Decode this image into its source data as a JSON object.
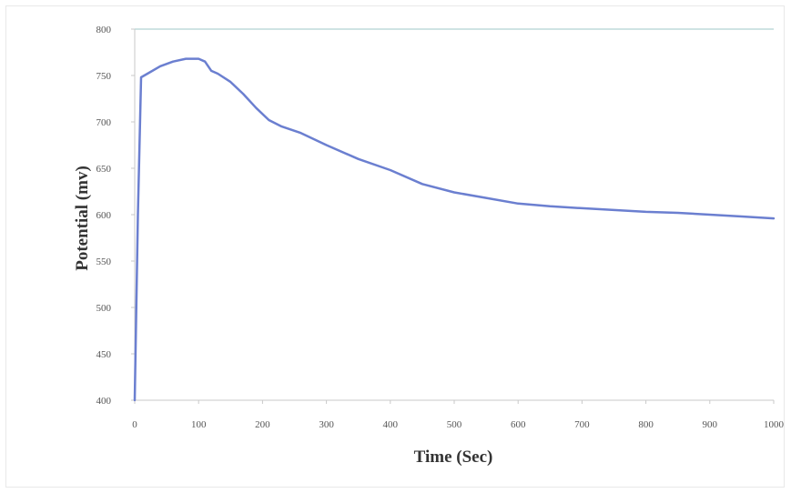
{
  "chart_data": {
    "type": "line",
    "title": "",
    "xlabel": "Time (Sec)",
    "ylabel": "Potential (mv)",
    "xlim": [
      0,
      1000
    ],
    "ylim": [
      400,
      800
    ],
    "x_ticks": [
      0,
      100,
      200,
      300,
      400,
      500,
      600,
      700,
      800,
      900,
      1000
    ],
    "y_ticks": [
      400,
      450,
      500,
      550,
      600,
      650,
      700,
      750,
      800
    ],
    "x_tick_labels": [
      "0",
      "100",
      "200",
      "300",
      "400",
      "500",
      "600",
      "700",
      "800",
      "900",
      "1000"
    ],
    "y_tick_labels": [
      "400",
      "450",
      "500",
      "550",
      "600",
      "650",
      "700",
      "750",
      "800"
    ],
    "grid": false,
    "colors": {
      "series": "#6b7fd0",
      "top_border": "#cfe3e3",
      "axis": "#c9c9c9"
    },
    "series": [
      {
        "x": [
          0,
          5,
          10,
          20,
          40,
          60,
          80,
          100,
          110,
          120,
          130,
          150,
          170,
          190,
          210,
          230,
          260,
          300,
          350,
          400,
          450,
          500,
          550,
          600,
          650,
          700,
          750,
          800,
          850,
          900,
          950,
          1000
        ],
        "y": [
          400,
          600,
          748,
          752,
          760,
          765,
          768,
          768,
          765,
          755,
          752,
          743,
          730,
          715,
          702,
          695,
          688,
          675,
          660,
          648,
          633,
          624,
          618,
          612,
          609,
          607,
          605,
          603,
          602,
          600,
          598,
          596
        ]
      }
    ]
  }
}
